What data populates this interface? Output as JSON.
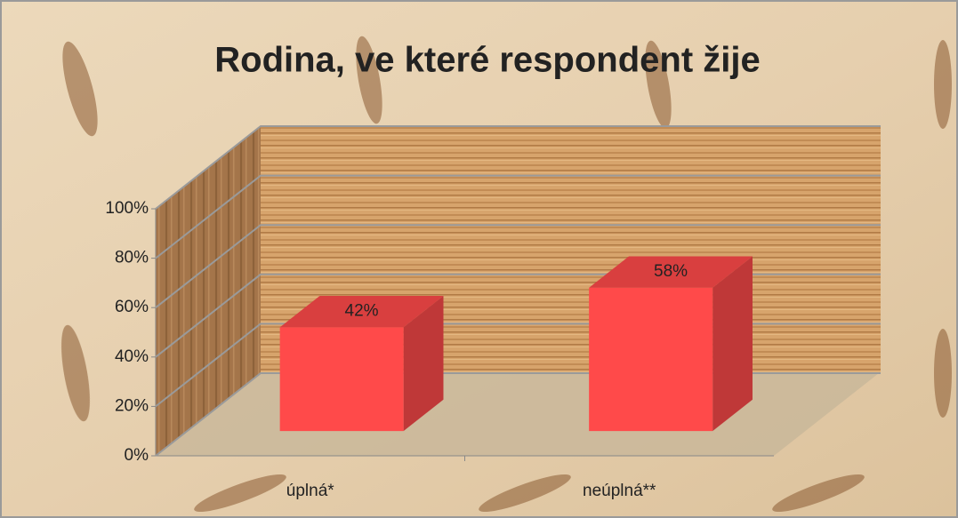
{
  "chart_data": {
    "type": "bar",
    "title": "Rodina, ve které respondent žije",
    "categories": [
      "úplná*",
      "neúplná**"
    ],
    "values": [
      42,
      58
    ],
    "value_labels": [
      "42%",
      "58%"
    ],
    "color": "#ff4a4a",
    "ylim": [
      0,
      100
    ],
    "yticks": [
      {
        "value": 0,
        "label": "0%"
      },
      {
        "value": 20,
        "label": "20%"
      },
      {
        "value": 40,
        "label": "40%"
      },
      {
        "value": 60,
        "label": "60%"
      },
      {
        "value": 80,
        "label": "80%"
      },
      {
        "value": 100,
        "label": "100%"
      }
    ],
    "grid": true
  }
}
